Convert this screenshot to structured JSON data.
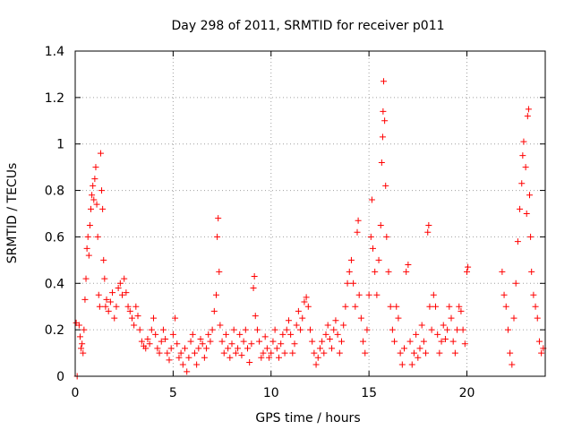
{
  "colors": {
    "background": "#ffffff",
    "axis": "#000000",
    "grid": "#a0a0a0",
    "marker": "#ff0000"
  },
  "chart_data": {
    "type": "scatter",
    "title": "Day 298 of 2011, SRMTID for receiver p011",
    "xlabel": "GPS time / hours",
    "ylabel": "SRMTID / TECUs",
    "xlim": [
      0,
      24
    ],
    "ylim": [
      0,
      1.4
    ],
    "xticks": [
      0,
      5,
      10,
      15,
      20
    ],
    "yticks": [
      0,
      0.2,
      0.4,
      0.6,
      0.8,
      1,
      1.2,
      1.4
    ],
    "ytick_labels": [
      "0",
      "0.2",
      "0.4",
      "0.6",
      "0.8",
      "1",
      "1.2",
      "1.4"
    ],
    "grid": true,
    "marker": "+",
    "series": [
      {
        "name": "SRMTID",
        "points": [
          [
            0.05,
            0.23
          ],
          [
            0.1,
            0.0
          ],
          [
            0.2,
            0.22
          ],
          [
            0.25,
            0.17
          ],
          [
            0.3,
            0.12
          ],
          [
            0.35,
            0.14
          ],
          [
            0.4,
            0.1
          ],
          [
            0.45,
            0.2
          ],
          [
            0.5,
            0.33
          ],
          [
            0.55,
            0.42
          ],
          [
            0.6,
            0.55
          ],
          [
            0.65,
            0.6
          ],
          [
            0.7,
            0.52
          ],
          [
            0.75,
            0.65
          ],
          [
            0.8,
            0.72
          ],
          [
            0.85,
            0.78
          ],
          [
            0.9,
            0.82
          ],
          [
            0.95,
            0.76
          ],
          [
            1.0,
            0.85
          ],
          [
            1.05,
            0.9
          ],
          [
            1.1,
            0.74
          ],
          [
            1.15,
            0.6
          ],
          [
            1.2,
            0.35
          ],
          [
            1.25,
            0.3
          ],
          [
            1.3,
            0.96
          ],
          [
            1.35,
            0.8
          ],
          [
            1.4,
            0.72
          ],
          [
            1.45,
            0.5
          ],
          [
            1.5,
            0.42
          ],
          [
            1.55,
            0.3
          ],
          [
            1.6,
            0.33
          ],
          [
            1.7,
            0.28
          ],
          [
            1.8,
            0.32
          ],
          [
            1.9,
            0.36
          ],
          [
            2.0,
            0.25
          ],
          [
            2.1,
            0.3
          ],
          [
            2.2,
            0.38
          ],
          [
            2.3,
            0.4
          ],
          [
            2.4,
            0.35
          ],
          [
            2.5,
            0.42
          ],
          [
            2.6,
            0.36
          ],
          [
            2.7,
            0.3
          ],
          [
            2.8,
            0.28
          ],
          [
            2.9,
            0.25
          ],
          [
            3.0,
            0.22
          ],
          [
            3.1,
            0.3
          ],
          [
            3.2,
            0.26
          ],
          [
            3.3,
            0.2
          ],
          [
            3.4,
            0.15
          ],
          [
            3.5,
            0.13
          ],
          [
            3.6,
            0.12
          ],
          [
            3.7,
            0.16
          ],
          [
            3.8,
            0.14
          ],
          [
            3.9,
            0.2
          ],
          [
            4.0,
            0.25
          ],
          [
            4.1,
            0.18
          ],
          [
            4.2,
            0.12
          ],
          [
            4.3,
            0.1
          ],
          [
            4.4,
            0.15
          ],
          [
            4.5,
            0.2
          ],
          [
            4.6,
            0.16
          ],
          [
            4.7,
            0.1
          ],
          [
            4.8,
            0.07
          ],
          [
            4.9,
            0.12
          ],
          [
            5.0,
            0.18
          ],
          [
            5.1,
            0.25
          ],
          [
            5.2,
            0.14
          ],
          [
            5.3,
            0.08
          ],
          [
            5.4,
            0.1
          ],
          [
            5.5,
            0.05
          ],
          [
            5.6,
            0.12
          ],
          [
            5.7,
            0.02
          ],
          [
            5.8,
            0.08
          ],
          [
            5.9,
            0.15
          ],
          [
            6.0,
            0.18
          ],
          [
            6.1,
            0.1
          ],
          [
            6.2,
            0.05
          ],
          [
            6.3,
            0.12
          ],
          [
            6.4,
            0.16
          ],
          [
            6.5,
            0.14
          ],
          [
            6.6,
            0.08
          ],
          [
            6.7,
            0.12
          ],
          [
            6.8,
            0.18
          ],
          [
            6.9,
            0.15
          ],
          [
            7.0,
            0.2
          ],
          [
            7.1,
            0.28
          ],
          [
            7.2,
            0.35
          ],
          [
            7.25,
            0.6
          ],
          [
            7.3,
            0.68
          ],
          [
            7.35,
            0.45
          ],
          [
            7.4,
            0.22
          ],
          [
            7.5,
            0.15
          ],
          [
            7.6,
            0.1
          ],
          [
            7.7,
            0.18
          ],
          [
            7.8,
            0.12
          ],
          [
            7.9,
            0.08
          ],
          [
            8.0,
            0.14
          ],
          [
            8.1,
            0.2
          ],
          [
            8.2,
            0.1
          ],
          [
            8.3,
            0.12
          ],
          [
            8.4,
            0.18
          ],
          [
            8.5,
            0.09
          ],
          [
            8.6,
            0.15
          ],
          [
            8.7,
            0.2
          ],
          [
            8.8,
            0.12
          ],
          [
            8.9,
            0.06
          ],
          [
            9.0,
            0.14
          ],
          [
            9.1,
            0.38
          ],
          [
            9.15,
            0.43
          ],
          [
            9.2,
            0.26
          ],
          [
            9.3,
            0.2
          ],
          [
            9.4,
            0.15
          ],
          [
            9.5,
            0.08
          ],
          [
            9.6,
            0.1
          ],
          [
            9.7,
            0.17
          ],
          [
            9.8,
            0.12
          ],
          [
            9.9,
            0.08
          ],
          [
            10.0,
            0.1
          ],
          [
            10.1,
            0.15
          ],
          [
            10.2,
            0.2
          ],
          [
            10.3,
            0.12
          ],
          [
            10.4,
            0.08
          ],
          [
            10.5,
            0.14
          ],
          [
            10.6,
            0.18
          ],
          [
            10.7,
            0.1
          ],
          [
            10.8,
            0.2
          ],
          [
            10.9,
            0.24
          ],
          [
            11.0,
            0.18
          ],
          [
            11.1,
            0.1
          ],
          [
            11.2,
            0.14
          ],
          [
            11.3,
            0.22
          ],
          [
            11.4,
            0.28
          ],
          [
            11.5,
            0.2
          ],
          [
            11.6,
            0.25
          ],
          [
            11.7,
            0.32
          ],
          [
            11.8,
            0.34
          ],
          [
            11.9,
            0.3
          ],
          [
            12.0,
            0.2
          ],
          [
            12.1,
            0.15
          ],
          [
            12.2,
            0.1
          ],
          [
            12.3,
            0.05
          ],
          [
            12.4,
            0.08
          ],
          [
            12.5,
            0.12
          ],
          [
            12.6,
            0.15
          ],
          [
            12.7,
            0.1
          ],
          [
            12.8,
            0.18
          ],
          [
            12.9,
            0.22
          ],
          [
            13.0,
            0.16
          ],
          [
            13.1,
            0.12
          ],
          [
            13.2,
            0.2
          ],
          [
            13.3,
            0.24
          ],
          [
            13.4,
            0.18
          ],
          [
            13.5,
            0.1
          ],
          [
            13.6,
            0.15
          ],
          [
            13.7,
            0.22
          ],
          [
            13.8,
            0.3
          ],
          [
            13.9,
            0.4
          ],
          [
            14.0,
            0.45
          ],
          [
            14.1,
            0.5
          ],
          [
            14.2,
            0.4
          ],
          [
            14.3,
            0.3
          ],
          [
            14.4,
            0.62
          ],
          [
            14.45,
            0.67
          ],
          [
            14.5,
            0.35
          ],
          [
            14.6,
            0.25
          ],
          [
            14.7,
            0.15
          ],
          [
            14.8,
            0.1
          ],
          [
            14.9,
            0.2
          ],
          [
            15.0,
            0.35
          ],
          [
            15.1,
            0.6
          ],
          [
            15.15,
            0.76
          ],
          [
            15.2,
            0.55
          ],
          [
            15.3,
            0.45
          ],
          [
            15.4,
            0.35
          ],
          [
            15.5,
            0.5
          ],
          [
            15.6,
            0.65
          ],
          [
            15.65,
            0.92
          ],
          [
            15.7,
            1.03
          ],
          [
            15.72,
            1.14
          ],
          [
            15.75,
            1.27
          ],
          [
            15.8,
            1.1
          ],
          [
            15.85,
            0.82
          ],
          [
            15.9,
            0.6
          ],
          [
            16.0,
            0.45
          ],
          [
            16.1,
            0.3
          ],
          [
            16.2,
            0.2
          ],
          [
            16.3,
            0.15
          ],
          [
            16.4,
            0.3
          ],
          [
            16.5,
            0.25
          ],
          [
            16.6,
            0.1
          ],
          [
            16.7,
            0.05
          ],
          [
            16.8,
            0.12
          ],
          [
            16.9,
            0.45
          ],
          [
            17.0,
            0.48
          ],
          [
            17.1,
            0.15
          ],
          [
            17.2,
            0.05
          ],
          [
            17.3,
            0.1
          ],
          [
            17.4,
            0.18
          ],
          [
            17.5,
            0.08
          ],
          [
            17.6,
            0.12
          ],
          [
            17.7,
            0.22
          ],
          [
            17.8,
            0.15
          ],
          [
            17.9,
            0.1
          ],
          [
            18.0,
            0.62
          ],
          [
            18.05,
            0.65
          ],
          [
            18.1,
            0.3
          ],
          [
            18.2,
            0.2
          ],
          [
            18.3,
            0.35
          ],
          [
            18.4,
            0.3
          ],
          [
            18.5,
            0.18
          ],
          [
            18.6,
            0.1
          ],
          [
            18.7,
            0.15
          ],
          [
            18.8,
            0.22
          ],
          [
            18.9,
            0.16
          ],
          [
            19.0,
            0.2
          ],
          [
            19.1,
            0.3
          ],
          [
            19.2,
            0.25
          ],
          [
            19.3,
            0.15
          ],
          [
            19.4,
            0.1
          ],
          [
            19.5,
            0.2
          ],
          [
            19.6,
            0.3
          ],
          [
            19.7,
            0.28
          ],
          [
            19.8,
            0.2
          ],
          [
            19.9,
            0.14
          ],
          [
            20.0,
            0.45
          ],
          [
            20.05,
            0.47
          ],
          [
            21.8,
            0.45
          ],
          [
            21.9,
            0.35
          ],
          [
            22.0,
            0.3
          ],
          [
            22.1,
            0.2
          ],
          [
            22.2,
            0.1
          ],
          [
            22.3,
            0.05
          ],
          [
            22.4,
            0.25
          ],
          [
            22.5,
            0.4
          ],
          [
            22.6,
            0.58
          ],
          [
            22.7,
            0.72
          ],
          [
            22.8,
            0.83
          ],
          [
            22.85,
            0.95
          ],
          [
            22.9,
            1.01
          ],
          [
            23.0,
            0.9
          ],
          [
            23.05,
            0.7
          ],
          [
            23.1,
            1.12
          ],
          [
            23.15,
            1.15
          ],
          [
            23.2,
            0.78
          ],
          [
            23.25,
            0.6
          ],
          [
            23.3,
            0.45
          ],
          [
            23.4,
            0.35
          ],
          [
            23.5,
            0.3
          ],
          [
            23.6,
            0.25
          ],
          [
            23.7,
            0.15
          ],
          [
            23.8,
            0.1
          ],
          [
            23.9,
            0.12
          ]
        ]
      }
    ]
  }
}
